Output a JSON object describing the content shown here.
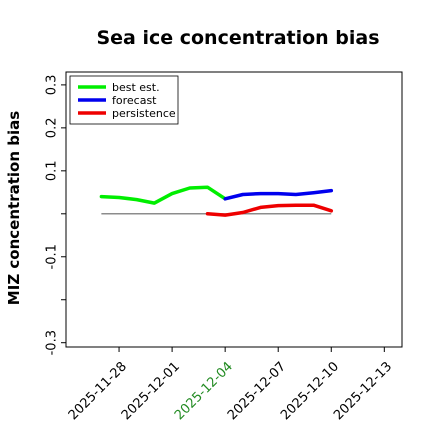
{
  "chart_data": {
    "type": "line",
    "title": "Sea ice concentration bias",
    "xlabel": "",
    "ylabel": "MIZ concentration bias",
    "ylim": [
      -0.31,
      0.33
    ],
    "yticks": [
      -0.3,
      -0.1,
      0.1,
      0.2,
      0.3
    ],
    "yticks_unlabeled": [
      -0.2,
      0.0
    ],
    "yticks_all": [
      -0.3,
      -0.2,
      -0.1,
      0.0,
      0.1,
      0.2,
      0.3
    ],
    "ytick_labels": [
      "-0.3",
      "-0.1",
      "0.1",
      "0.2",
      "0.3"
    ],
    "xlim": [
      "2025-11-25",
      "2025-12-14"
    ],
    "xticks": [
      "2025-11-28",
      "2025-12-01",
      "2025-12-04",
      "2025-12-07",
      "2025-12-10",
      "2025-12-13"
    ],
    "xtick_labels": [
      "2025-11-28",
      "2025-12-01",
      "2025-12-04",
      "2025-12-07",
      "2025-12-10",
      "2025-12-13"
    ],
    "highlighted_xtick": "2025-12-04",
    "highlight_color": "#228B22",
    "zero_line": {
      "y": 0.0,
      "from": "2025-11-27",
      "to": "2025-12-10",
      "color": "#666666"
    },
    "legend": {
      "position": "top-left",
      "entries": [
        {
          "label": "best est.",
          "color": "#00ee00"
        },
        {
          "label": "forecast",
          "color": "#0000ee"
        },
        {
          "label": "persistence",
          "color": "#ee0000"
        }
      ]
    },
    "series": [
      {
        "color": "#00ee00",
        "x": [
          "2025-11-27",
          "2025-11-28",
          "2025-11-29",
          "2025-11-30",
          "2025-12-01",
          "2025-12-02",
          "2025-12-03",
          "2025-12-04"
        ],
        "y": [
          0.04,
          0.038,
          0.033,
          0.025,
          0.047,
          0.06,
          0.062,
          0.035
        ]
      },
      {
        "color": "#0000ee",
        "x": [
          "2025-12-04",
          "2025-12-05",
          "2025-12-06",
          "2025-12-07",
          "2025-12-08",
          "2025-12-09",
          "2025-12-10"
        ],
        "y": [
          0.035,
          0.045,
          0.047,
          0.047,
          0.045,
          0.049,
          0.054
        ]
      },
      {
        "color": "#ee0000",
        "x": [
          "2025-12-03",
          "2025-12-04",
          "2025-12-05",
          "2025-12-06",
          "2025-12-07",
          "2025-12-08",
          "2025-12-09",
          "2025-12-10"
        ],
        "y": [
          0.0,
          -0.003,
          0.003,
          0.015,
          0.019,
          0.02,
          0.02,
          0.007
        ]
      }
    ]
  }
}
